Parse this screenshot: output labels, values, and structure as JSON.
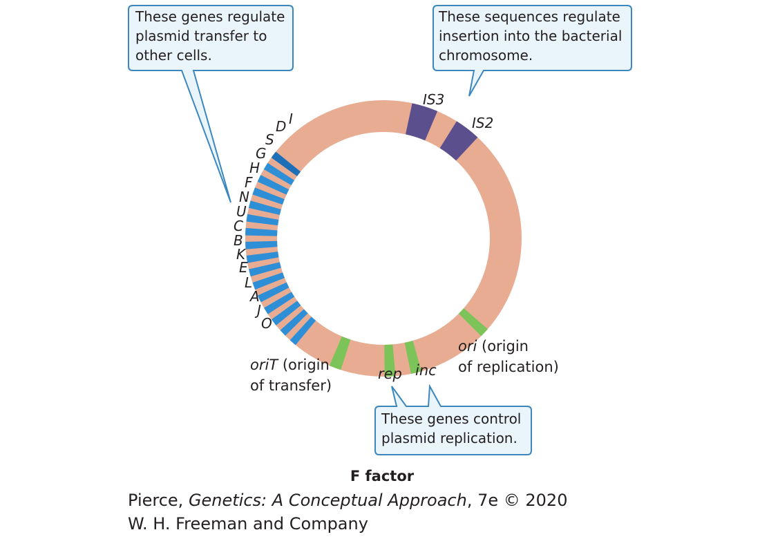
{
  "colors": {
    "plasmid": "#e8ac92",
    "tra_gene": "#2f8fd6",
    "tra_gene_dark": "#1d6fb8",
    "insertion_seq": "#5b4f8e",
    "replication_gene": "#7cc35a",
    "callout_fill": "#eaf4fb",
    "callout_border": "#3b87bd"
  },
  "callouts": {
    "transfer": [
      "These genes regulate",
      "plasmid transfer to",
      "other cells."
    ],
    "insertion": [
      "These sequences regulate",
      "insertion into the bacterial",
      "chromosome."
    ],
    "replication": [
      "These genes control",
      "plasmid replication."
    ]
  },
  "tra_genes": [
    "I",
    "D",
    "S",
    "G",
    "H",
    "F",
    "N",
    "U",
    "C",
    "B",
    "K",
    "E",
    "L",
    "A",
    "J",
    "O"
  ],
  "insertion_labels": {
    "is3": "IS3",
    "is2": "IS2"
  },
  "sites": {
    "ori_name": "ori",
    "ori_desc_1": " (origin",
    "ori_desc_2": "of replication)",
    "orit_name": "oriT",
    "orit_desc_1": " (origin",
    "orit_desc_2": "of transfer)",
    "rep": "rep",
    "inc": "inc"
  },
  "title": "F factor",
  "credit": {
    "line1_author": "Pierce, ",
    "line1_book": "Genetics: A Conceptual Approach",
    "line1_rest": ", 7e © 2020",
    "line2": "W. H. Freeman and Company"
  }
}
